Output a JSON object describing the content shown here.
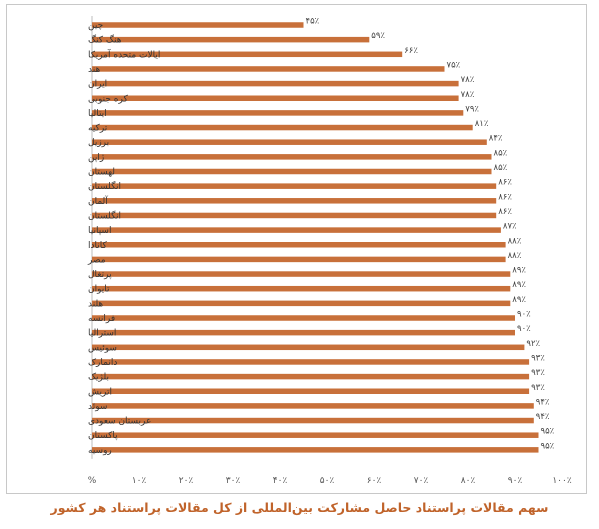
{
  "chart_data": {
    "type": "bar",
    "orientation": "horizontal",
    "title": "سهم مقالات پراستناد حاصل مشارکت بین‌المللی از کل مقالات پراستناد هر کشور",
    "x_axis_unit_label": "%",
    "xlim": [
      0,
      100
    ],
    "x_ticks": [
      {
        "value": 10,
        "label": "۱۰٪"
      },
      {
        "value": 20,
        "label": "۲۰٪"
      },
      {
        "value": 30,
        "label": "۳۰٪"
      },
      {
        "value": 40,
        "label": "۴۰٪"
      },
      {
        "value": 50,
        "label": "۵۰٪"
      },
      {
        "value": 60,
        "label": "۶۰٪"
      },
      {
        "value": 70,
        "label": "۷۰٪"
      },
      {
        "value": 80,
        "label": "۸۰٪"
      },
      {
        "value": 90,
        "label": "۹۰٪"
      },
      {
        "value": 100,
        "label": "۱۰۰٪"
      }
    ],
    "bar_color": "#c8703a",
    "grid": false,
    "categories": [
      "چین",
      "هنگ کنگ",
      "ایالات متحده آمریکا",
      "هند",
      "ایران",
      "کره جنوبی",
      "ایتالیا",
      "ترکیه",
      "برزیل",
      "ژاپن",
      "لهستان",
      "انگلستان",
      "آلمان",
      "انگلستان",
      "اسپانیا",
      "کانادا",
      "مصر",
      "پرتغال",
      "تایوان",
      "هلند",
      "فرانسه",
      "استرالیا",
      "سوئیس",
      "دانمارک",
      "بلژیک",
      "اتریش",
      "سوئد",
      "عربستان سعودی",
      "پاکستان",
      "روسیه"
    ],
    "values": [
      45,
      59,
      66,
      75,
      78,
      78,
      79,
      81,
      84,
      85,
      85,
      86,
      86,
      86,
      87,
      88,
      88,
      89,
      89,
      89,
      90,
      90,
      92,
      93,
      93,
      93,
      94,
      94,
      95,
      95
    ],
    "value_labels": [
      "۴۵٪",
      "۵۹٪",
      "۶۶٪",
      "۷۵٪",
      "۷۸٪",
      "۷۸٪",
      "۷۹٪",
      "۸۱٪",
      "۸۴٪",
      "۸۵٪",
      "۸۵٪",
      "۸۶٪",
      "۸۶٪",
      "۸۶٪",
      "۸۷٪",
      "۸۸٪",
      "۸۸٪",
      "۸۹٪",
      "۸۹٪",
      "۸۹٪",
      "۹۰٪",
      "۹۰٪",
      "۹۲٪",
      "۹۳٪",
      "۹۳٪",
      "۹۳٪",
      "۹۴٪",
      "۹۴٪",
      "۹۵٪",
      "۹۵٪"
    ]
  }
}
